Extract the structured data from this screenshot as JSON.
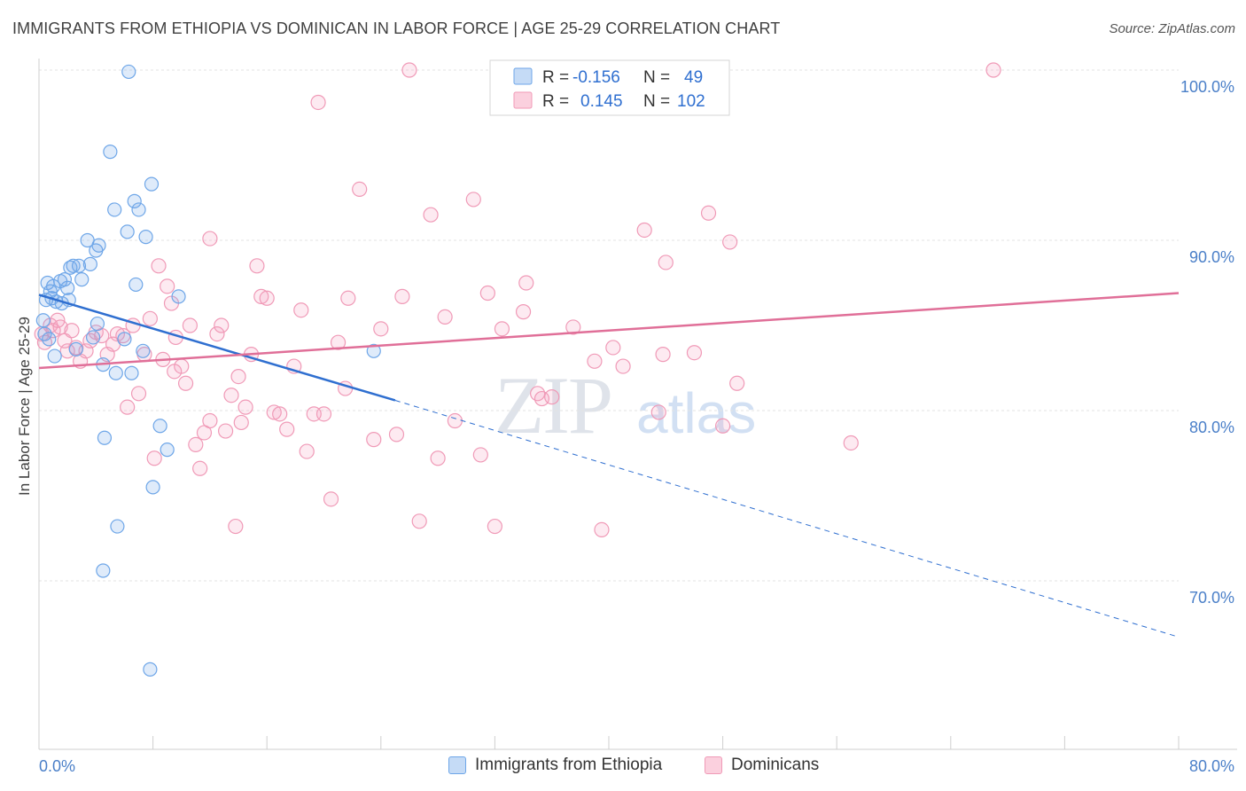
{
  "title": "IMMIGRANTS FROM ETHIOPIA VS DOMINICAN IN LABOR FORCE | AGE 25-29 CORRELATION CHART",
  "source": "Source: ZipAtlas.com",
  "watermark": {
    "zip": "ZIP",
    "atlas": "atlas"
  },
  "legend_top": {
    "rows": [
      {
        "r_label": "R =",
        "r_value": "-0.156",
        "n_label": "N =",
        "n_value": "49"
      },
      {
        "r_label": "R =",
        "r_value": "0.145",
        "n_label": "N =",
        "n_value": "102"
      }
    ]
  },
  "legend_bottom": {
    "series1": "Immigrants from Ethiopia",
    "series2": "Dominicans"
  },
  "chart_data": {
    "type": "scatter",
    "title": "IMMIGRANTS FROM ETHIOPIA VS DOMINICAN IN LABOR FORCE | AGE 25-29 CORRELATION CHART",
    "xlabel": "",
    "ylabel": "In Labor Force | Age 25-29",
    "xlim": [
      0,
      80
    ],
    "ylim": [
      60.5,
      101.5
    ],
    "x_tick_labels": [
      "0.0%",
      "80.0%"
    ],
    "y_ticks": [
      70,
      80,
      90,
      100
    ],
    "y_tick_labels": [
      "70.0%",
      "80.0%",
      "90.0%",
      "100.0%"
    ],
    "grid": true,
    "colors": {
      "ethiopia": "#6ea6e8",
      "dominican": "#f09ab7",
      "ethiopia_line": "#2f6fd0",
      "dominican_line": "#e06f98"
    },
    "series": [
      {
        "name": "Immigrants from Ethiopia",
        "stats": {
          "R": -0.156,
          "N": 49
        },
        "points": [
          [
            0.3,
            85.3
          ],
          [
            0.4,
            84.5
          ],
          [
            0.5,
            86.5
          ],
          [
            0.6,
            87.5
          ],
          [
            0.7,
            84.2
          ],
          [
            0.9,
            86.6
          ],
          [
            1.0,
            87.3
          ],
          [
            1.1,
            83.2
          ],
          [
            1.2,
            86.4
          ],
          [
            1.5,
            87.6
          ],
          [
            1.6,
            86.3
          ],
          [
            1.8,
            87.7
          ],
          [
            2.0,
            87.2
          ],
          [
            2.1,
            86.5
          ],
          [
            2.4,
            88.5
          ],
          [
            2.6,
            83.6
          ],
          [
            2.8,
            88.5
          ],
          [
            3.0,
            87.7
          ],
          [
            3.4,
            90.0
          ],
          [
            3.6,
            88.6
          ],
          [
            3.8,
            84.3
          ],
          [
            4.0,
            89.4
          ],
          [
            4.1,
            85.1
          ],
          [
            4.2,
            89.7
          ],
          [
            4.5,
            82.7
          ],
          [
            4.6,
            78.4
          ],
          [
            5.0,
            95.2
          ],
          [
            5.3,
            91.8
          ],
          [
            5.4,
            82.2
          ],
          [
            5.5,
            73.2
          ],
          [
            6.0,
            84.2
          ],
          [
            6.2,
            90.5
          ],
          [
            6.3,
            99.9
          ],
          [
            6.5,
            82.2
          ],
          [
            6.7,
            92.3
          ],
          [
            6.8,
            87.4
          ],
          [
            7.0,
            91.8
          ],
          [
            7.3,
            83.5
          ],
          [
            7.5,
            90.2
          ],
          [
            7.8,
            64.8
          ],
          [
            7.9,
            93.3
          ],
          [
            8.0,
            75.5
          ],
          [
            8.5,
            79.1
          ],
          [
            9.0,
            77.7
          ],
          [
            9.8,
            86.7
          ],
          [
            4.5,
            70.6
          ],
          [
            23.5,
            83.5
          ],
          [
            0.8,
            87.0
          ],
          [
            2.2,
            88.4
          ]
        ]
      },
      {
        "name": "Dominicans",
        "stats": {
          "R": 0.145,
          "N": 102
        },
        "points": [
          [
            0.2,
            84.5
          ],
          [
            0.4,
            84.0
          ],
          [
            0.8,
            85.0
          ],
          [
            1.0,
            84.7
          ],
          [
            1.3,
            85.3
          ],
          [
            1.5,
            84.9
          ],
          [
            1.8,
            84.1
          ],
          [
            2.0,
            83.5
          ],
          [
            2.3,
            84.7
          ],
          [
            2.6,
            83.7
          ],
          [
            2.9,
            82.9
          ],
          [
            3.3,
            83.5
          ],
          [
            3.6,
            84.1
          ],
          [
            4.0,
            84.6
          ],
          [
            4.4,
            84.4
          ],
          [
            4.8,
            83.3
          ],
          [
            5.2,
            83.9
          ],
          [
            5.5,
            84.5
          ],
          [
            5.9,
            84.4
          ],
          [
            6.2,
            80.2
          ],
          [
            6.6,
            85.0
          ],
          [
            7.0,
            81.0
          ],
          [
            7.4,
            83.3
          ],
          [
            7.8,
            85.4
          ],
          [
            8.1,
            77.2
          ],
          [
            8.4,
            88.5
          ],
          [
            8.7,
            83.0
          ],
          [
            9.0,
            87.3
          ],
          [
            9.3,
            86.3
          ],
          [
            9.6,
            84.3
          ],
          [
            10.0,
            82.6
          ],
          [
            10.3,
            81.6
          ],
          [
            10.6,
            85.0
          ],
          [
            11.0,
            78.0
          ],
          [
            11.3,
            76.6
          ],
          [
            11.6,
            78.7
          ],
          [
            12.0,
            79.4
          ],
          [
            12.5,
            84.5
          ],
          [
            12.8,
            85.0
          ],
          [
            13.1,
            78.8
          ],
          [
            13.5,
            80.9
          ],
          [
            13.8,
            73.2
          ],
          [
            14.2,
            79.3
          ],
          [
            14.5,
            80.2
          ],
          [
            14.9,
            83.3
          ],
          [
            15.3,
            88.5
          ],
          [
            15.6,
            86.7
          ],
          [
            16.0,
            86.6
          ],
          [
            16.5,
            79.9
          ],
          [
            16.9,
            79.8
          ],
          [
            17.4,
            78.9
          ],
          [
            17.9,
            82.6
          ],
          [
            18.4,
            85.9
          ],
          [
            18.8,
            77.6
          ],
          [
            19.3,
            79.8
          ],
          [
            19.6,
            98.1
          ],
          [
            20.5,
            74.8
          ],
          [
            21.0,
            84.0
          ],
          [
            21.5,
            81.3
          ],
          [
            21.7,
            86.6
          ],
          [
            22.5,
            93.0
          ],
          [
            23.5,
            78.3
          ],
          [
            24.0,
            84.8
          ],
          [
            25.1,
            78.6
          ],
          [
            25.5,
            86.7
          ],
          [
            26.0,
            100.0
          ],
          [
            26.7,
            73.5
          ],
          [
            27.5,
            91.5
          ],
          [
            28.0,
            77.2
          ],
          [
            28.5,
            85.5
          ],
          [
            29.2,
            79.4
          ],
          [
            30.5,
            92.4
          ],
          [
            31.0,
            77.4
          ],
          [
            31.5,
            86.9
          ],
          [
            32.0,
            73.2
          ],
          [
            32.5,
            84.8
          ],
          [
            33.5,
            100.0
          ],
          [
            34.0,
            85.8
          ],
          [
            34.2,
            87.5
          ],
          [
            35.0,
            81.0
          ],
          [
            35.3,
            80.7
          ],
          [
            37.5,
            84.9
          ],
          [
            39.0,
            82.9
          ],
          [
            39.5,
            73.0
          ],
          [
            40.3,
            83.7
          ],
          [
            41.0,
            82.6
          ],
          [
            42.5,
            90.6
          ],
          [
            43.5,
            79.9
          ],
          [
            43.8,
            83.3
          ],
          [
            44.0,
            88.7
          ],
          [
            46.0,
            83.4
          ],
          [
            47.0,
            91.6
          ],
          [
            48.0,
            79.1
          ],
          [
            48.5,
            89.9
          ],
          [
            49.0,
            81.6
          ],
          [
            57.0,
            78.1
          ],
          [
            67.0,
            100.0
          ],
          [
            12.0,
            90.1
          ],
          [
            20.0,
            79.8
          ],
          [
            14.0,
            82.0
          ],
          [
            9.5,
            82.3
          ],
          [
            36.0,
            80.8
          ]
        ]
      }
    ],
    "trend_lines": [
      {
        "series": "Immigrants from Ethiopia",
        "x": [
          0,
          25
        ],
        "y": [
          86.8,
          80.6
        ],
        "extended_dashed_to": [
          80,
          66.7
        ]
      },
      {
        "series": "Dominicans",
        "x": [
          0,
          80
        ],
        "y": [
          82.5,
          86.9
        ]
      }
    ]
  }
}
